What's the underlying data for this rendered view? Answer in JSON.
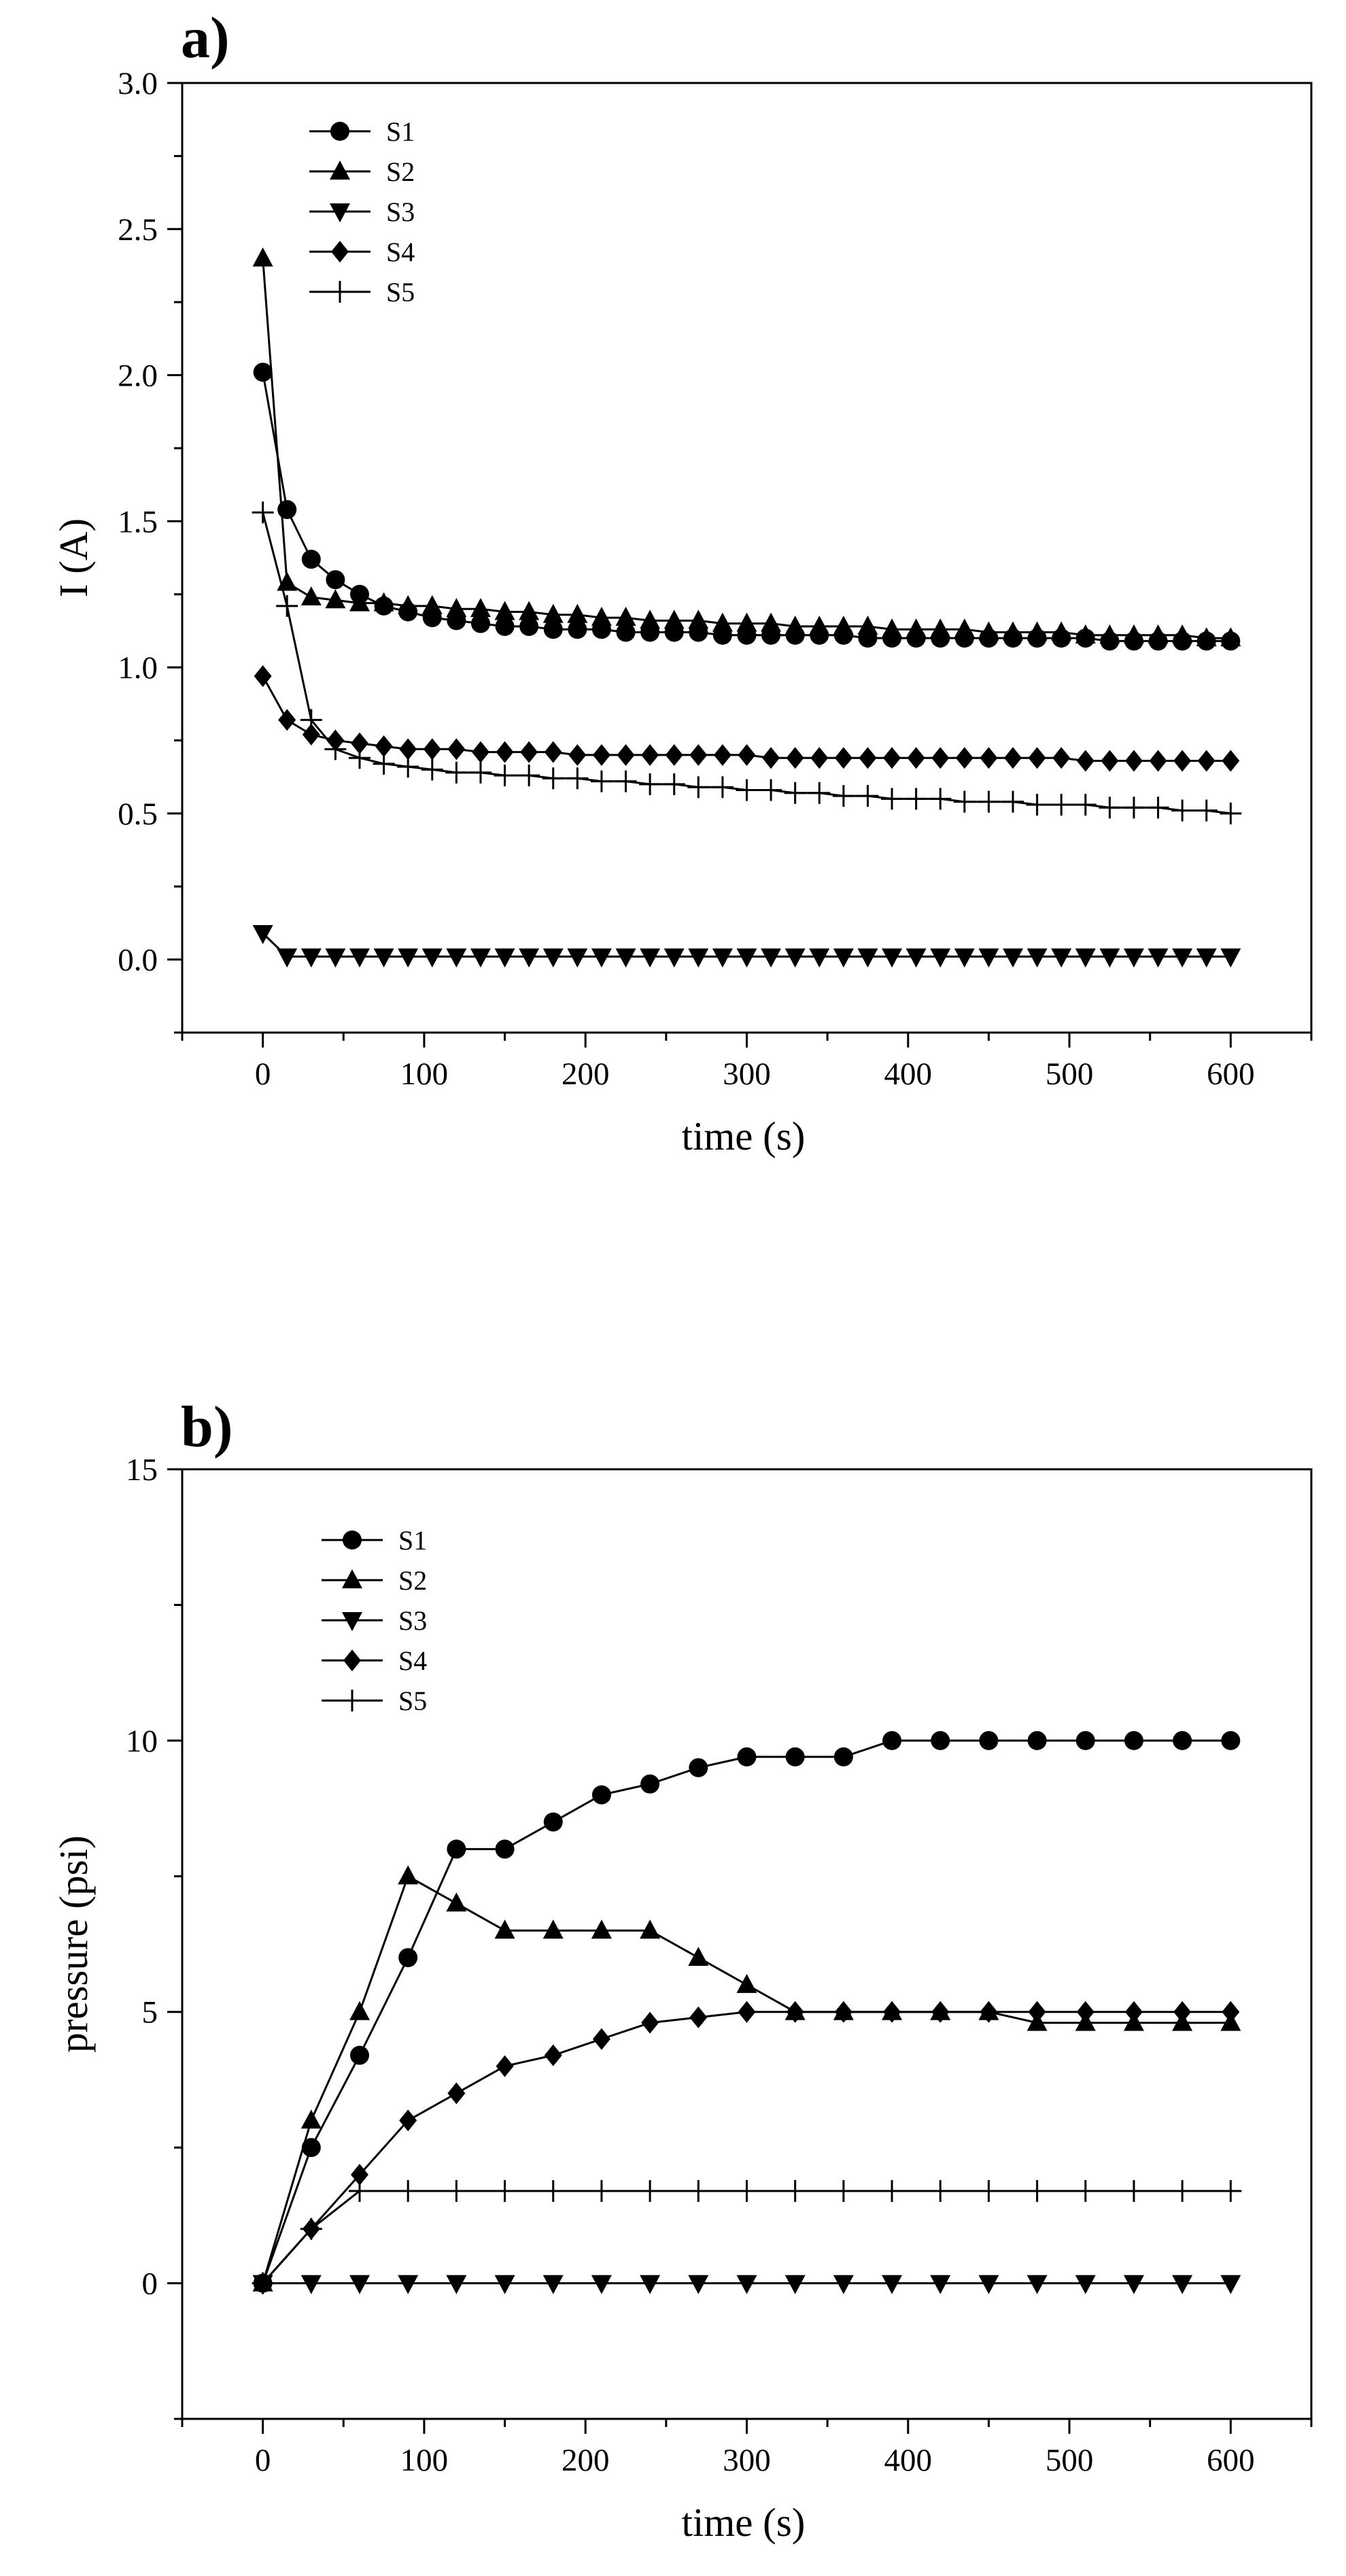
{
  "chart_data": [
    {
      "type": "line",
      "panel_label": "a)",
      "xlabel": "time (s)",
      "ylabel": "I (A)",
      "xlim": [
        -50,
        650
      ],
      "ylim": [
        -0.25,
        3.0
      ],
      "xticks": [
        0,
        100,
        200,
        300,
        400,
        500,
        600
      ],
      "yticks": [
        0.0,
        0.5,
        1.0,
        1.5,
        2.0,
        2.5,
        3.0
      ],
      "xtick_labels": [
        "0",
        "100",
        "200",
        "300",
        "400",
        "500",
        "600"
      ],
      "ytick_labels": [
        "0.0",
        "0.5",
        "1.0",
        "1.5",
        "2.0",
        "2.5",
        "3.0"
      ],
      "legend_position": "top-left",
      "series": [
        {
          "name": "S1",
          "marker": "circle",
          "x": [
            0,
            15,
            30,
            45,
            60,
            75,
            90,
            105,
            120,
            135,
            150,
            165,
            180,
            195,
            210,
            225,
            240,
            255,
            270,
            285,
            300,
            315,
            330,
            345,
            360,
            375,
            390,
            405,
            420,
            435,
            450,
            465,
            480,
            495,
            510,
            525,
            540,
            555,
            570,
            585,
            600
          ],
          "y": [
            2.01,
            1.54,
            1.37,
            1.3,
            1.25,
            1.21,
            1.19,
            1.17,
            1.16,
            1.15,
            1.14,
            1.14,
            1.13,
            1.13,
            1.13,
            1.12,
            1.12,
            1.12,
            1.12,
            1.11,
            1.11,
            1.11,
            1.11,
            1.11,
            1.11,
            1.1,
            1.1,
            1.1,
            1.1,
            1.1,
            1.1,
            1.1,
            1.1,
            1.1,
            1.1,
            1.09,
            1.09,
            1.09,
            1.09,
            1.09,
            1.09
          ]
        },
        {
          "name": "S2",
          "marker": "triangle-up",
          "x": [
            0,
            15,
            30,
            45,
            60,
            75,
            90,
            105,
            120,
            135,
            150,
            165,
            180,
            195,
            210,
            225,
            240,
            255,
            270,
            285,
            300,
            315,
            330,
            345,
            360,
            375,
            390,
            405,
            420,
            435,
            450,
            465,
            480,
            495,
            510,
            525,
            540,
            555,
            570,
            585,
            600
          ],
          "y": [
            2.4,
            1.29,
            1.24,
            1.23,
            1.22,
            1.22,
            1.21,
            1.21,
            1.2,
            1.2,
            1.19,
            1.19,
            1.18,
            1.18,
            1.17,
            1.17,
            1.16,
            1.16,
            1.16,
            1.15,
            1.15,
            1.15,
            1.14,
            1.14,
            1.14,
            1.14,
            1.13,
            1.13,
            1.13,
            1.13,
            1.12,
            1.12,
            1.12,
            1.12,
            1.11,
            1.11,
            1.11,
            1.11,
            1.11,
            1.1,
            1.1
          ]
        },
        {
          "name": "S3",
          "marker": "triangle-down",
          "x": [
            0,
            15,
            30,
            45,
            60,
            75,
            90,
            105,
            120,
            135,
            150,
            165,
            180,
            195,
            210,
            225,
            240,
            255,
            270,
            285,
            300,
            315,
            330,
            345,
            360,
            375,
            390,
            405,
            420,
            435,
            450,
            465,
            480,
            495,
            510,
            525,
            540,
            555,
            570,
            585,
            600
          ],
          "y": [
            0.09,
            0.01,
            0.01,
            0.01,
            0.01,
            0.01,
            0.01,
            0.01,
            0.01,
            0.01,
            0.01,
            0.01,
            0.01,
            0.01,
            0.01,
            0.01,
            0.01,
            0.01,
            0.01,
            0.01,
            0.01,
            0.01,
            0.01,
            0.01,
            0.01,
            0.01,
            0.01,
            0.01,
            0.01,
            0.01,
            0.01,
            0.01,
            0.01,
            0.01,
            0.01,
            0.01,
            0.01,
            0.01,
            0.01,
            0.01,
            0.01
          ]
        },
        {
          "name": "S4",
          "marker": "diamond",
          "x": [
            0,
            15,
            30,
            45,
            60,
            75,
            90,
            105,
            120,
            135,
            150,
            165,
            180,
            195,
            210,
            225,
            240,
            255,
            270,
            285,
            300,
            315,
            330,
            345,
            360,
            375,
            390,
            405,
            420,
            435,
            450,
            465,
            480,
            495,
            510,
            525,
            540,
            555,
            570,
            585,
            600
          ],
          "y": [
            0.97,
            0.82,
            0.77,
            0.75,
            0.74,
            0.73,
            0.72,
            0.72,
            0.72,
            0.71,
            0.71,
            0.71,
            0.71,
            0.7,
            0.7,
            0.7,
            0.7,
            0.7,
            0.7,
            0.7,
            0.7,
            0.69,
            0.69,
            0.69,
            0.69,
            0.69,
            0.69,
            0.69,
            0.69,
            0.69,
            0.69,
            0.69,
            0.69,
            0.69,
            0.68,
            0.68,
            0.68,
            0.68,
            0.68,
            0.68,
            0.68
          ]
        },
        {
          "name": "S5",
          "marker": "plus",
          "x": [
            0,
            15,
            30,
            45,
            60,
            75,
            90,
            105,
            120,
            135,
            150,
            165,
            180,
            195,
            210,
            225,
            240,
            255,
            270,
            285,
            300,
            315,
            330,
            345,
            360,
            375,
            390,
            405,
            420,
            435,
            450,
            465,
            480,
            495,
            510,
            525,
            540,
            555,
            570,
            585,
            600
          ],
          "y": [
            1.53,
            1.21,
            0.82,
            0.72,
            0.69,
            0.67,
            0.66,
            0.65,
            0.64,
            0.64,
            0.63,
            0.63,
            0.62,
            0.62,
            0.61,
            0.61,
            0.6,
            0.6,
            0.59,
            0.59,
            0.58,
            0.58,
            0.57,
            0.57,
            0.56,
            0.56,
            0.55,
            0.55,
            0.55,
            0.54,
            0.54,
            0.54,
            0.53,
            0.53,
            0.53,
            0.52,
            0.52,
            0.52,
            0.51,
            0.51,
            0.5
          ]
        }
      ]
    },
    {
      "type": "line",
      "panel_label": "b)",
      "xlabel": "time (s)",
      "ylabel": "pressure (psi)",
      "xlim": [
        -50,
        650
      ],
      "ylim": [
        -2.5,
        15
      ],
      "xticks": [
        0,
        100,
        200,
        300,
        400,
        500,
        600
      ],
      "yticks": [
        0,
        5,
        10,
        15
      ],
      "xtick_labels": [
        "0",
        "100",
        "200",
        "300",
        "400",
        "500",
        "600"
      ],
      "ytick_labels": [
        "0",
        "5",
        "10",
        "15"
      ],
      "legend_position": "top-left",
      "series": [
        {
          "name": "S1",
          "marker": "circle",
          "x": [
            0,
            30,
            60,
            90,
            120,
            150,
            180,
            210,
            240,
            270,
            300,
            330,
            360,
            390,
            420,
            450,
            480,
            510,
            540,
            570,
            600
          ],
          "y": [
            0,
            2.5,
            4.2,
            6,
            8,
            8,
            8.5,
            9,
            9.2,
            9.5,
            9.7,
            9.7,
            9.7,
            10,
            10,
            10,
            10,
            10,
            10,
            10,
            10
          ]
        },
        {
          "name": "S2",
          "marker": "triangle-up",
          "x": [
            0,
            30,
            60,
            90,
            120,
            150,
            180,
            210,
            240,
            270,
            300,
            330,
            360,
            390,
            420,
            450,
            480,
            510,
            540,
            570,
            600
          ],
          "y": [
            0,
            3,
            5,
            7.5,
            7,
            6.5,
            6.5,
            6.5,
            6.5,
            6,
            5.5,
            5,
            5,
            5,
            5,
            5,
            4.8,
            4.8,
            4.8,
            4.8,
            4.8
          ]
        },
        {
          "name": "S3",
          "marker": "triangle-down",
          "x": [
            0,
            30,
            60,
            90,
            120,
            150,
            180,
            210,
            240,
            270,
            300,
            330,
            360,
            390,
            420,
            450,
            480,
            510,
            540,
            570,
            600
          ],
          "y": [
            0,
            0,
            0,
            0,
            0,
            0,
            0,
            0,
            0,
            0,
            0,
            0,
            0,
            0,
            0,
            0,
            0,
            0,
            0,
            0,
            0
          ]
        },
        {
          "name": "S4",
          "marker": "diamond",
          "x": [
            0,
            30,
            60,
            90,
            120,
            150,
            180,
            210,
            240,
            270,
            300,
            330,
            360,
            390,
            420,
            450,
            480,
            510,
            540,
            570,
            600
          ],
          "y": [
            0,
            1,
            2,
            3,
            3.5,
            4,
            4.2,
            4.5,
            4.8,
            4.9,
            5,
            5,
            5,
            5,
            5,
            5,
            5,
            5,
            5,
            5,
            5
          ]
        },
        {
          "name": "S5",
          "marker": "plus",
          "x": [
            0,
            30,
            60,
            90,
            120,
            150,
            180,
            210,
            240,
            270,
            300,
            330,
            360,
            390,
            420,
            450,
            480,
            510,
            540,
            570,
            600
          ],
          "y": [
            0,
            1,
            1.7,
            1.7,
            1.7,
            1.7,
            1.7,
            1.7,
            1.7,
            1.7,
            1.7,
            1.7,
            1.7,
            1.7,
            1.7,
            1.7,
            1.7,
            1.7,
            1.7,
            1.7,
            1.7
          ]
        }
      ]
    }
  ]
}
